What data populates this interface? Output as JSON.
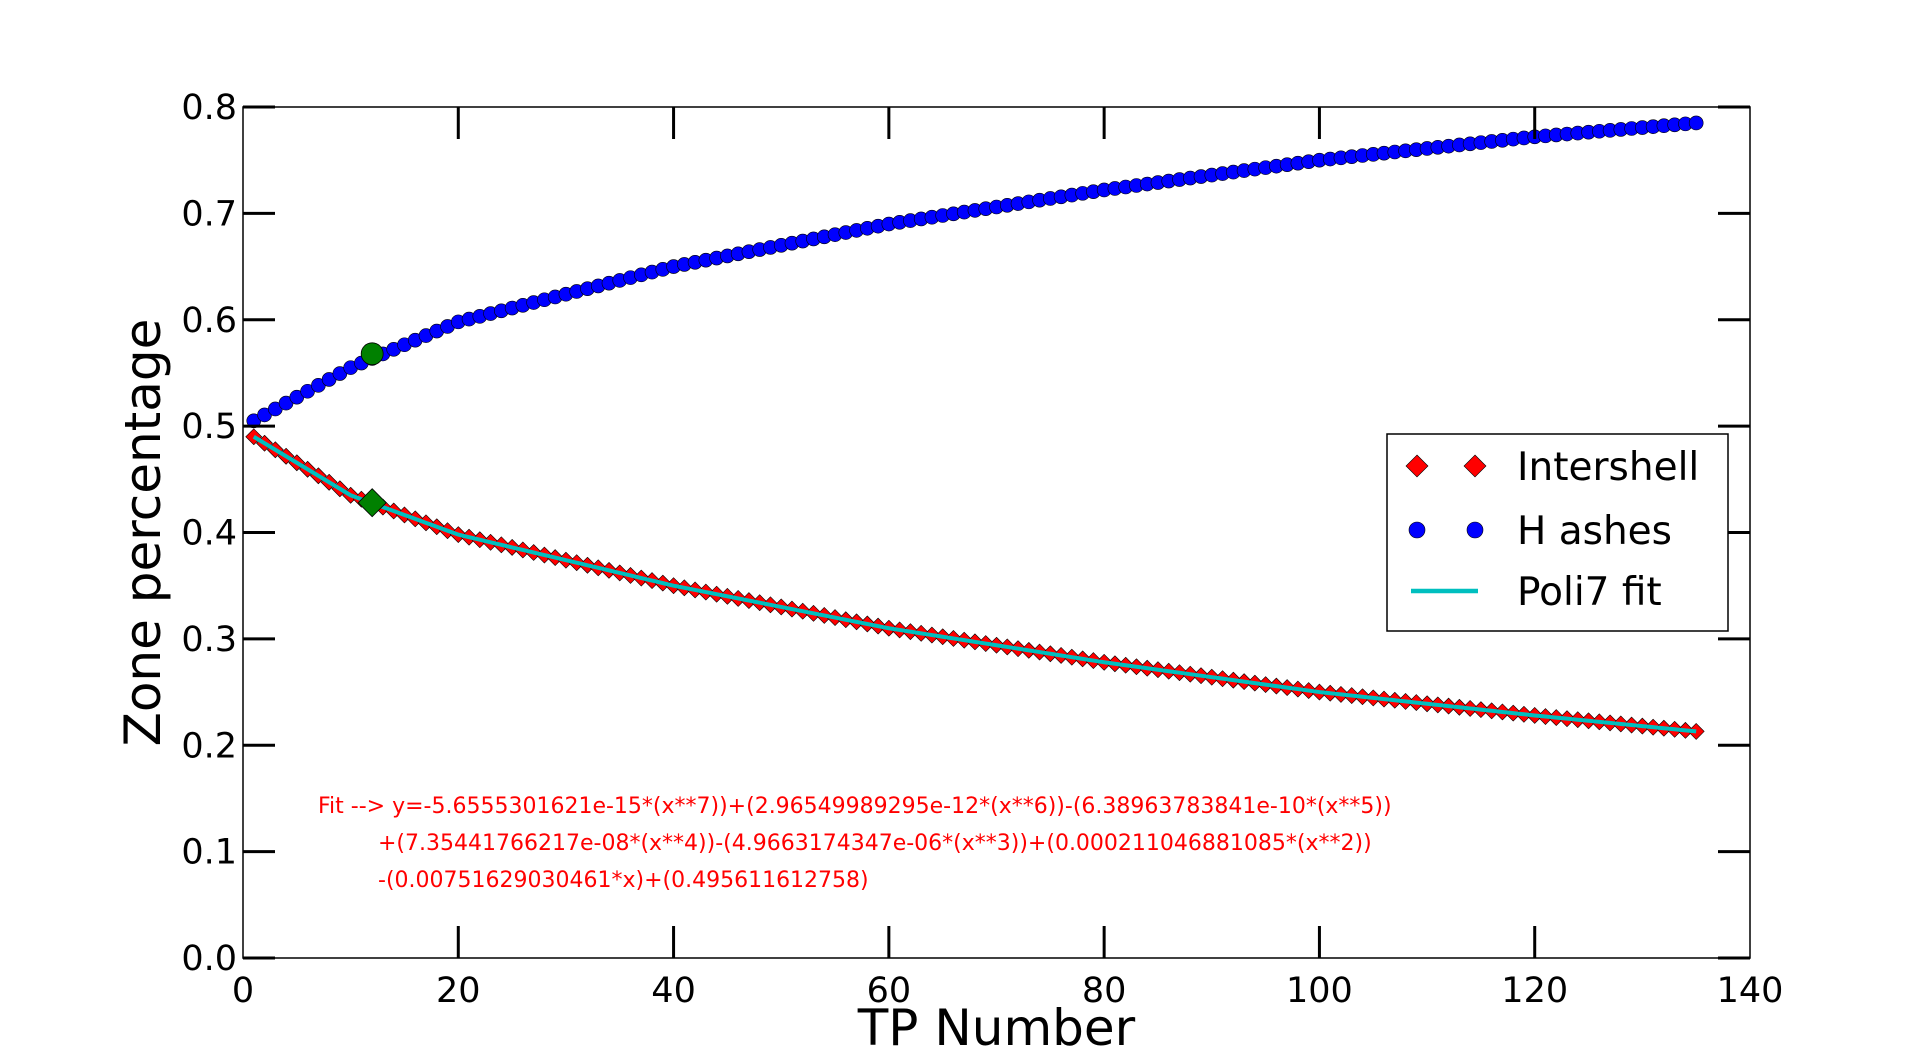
{
  "chart_data": {
    "type": "scatter",
    "title": "",
    "xlabel": "TP Number",
    "ylabel": "Zone percentage",
    "xlim": [
      0,
      140
    ],
    "ylim": [
      0.0,
      0.8
    ],
    "xticks": [
      "0",
      "20",
      "40",
      "60",
      "80",
      "100",
      "120",
      "140"
    ],
    "yticks": [
      "0.0",
      "0.1",
      "0.2",
      "0.3",
      "0.4",
      "0.5",
      "0.6",
      "0.7",
      "0.8"
    ],
    "grid": false,
    "legend_position": "center-right",
    "x_range": [
      1,
      135
    ],
    "series": [
      {
        "name": "Intershell",
        "marker": "diamond",
        "color": "#ff0000",
        "sample_points": [
          {
            "x": 1,
            "y": 0.49
          },
          {
            "x": 10,
            "y": 0.435
          },
          {
            "x": 20,
            "y": 0.398
          },
          {
            "x": 40,
            "y": 0.35
          },
          {
            "x": 60,
            "y": 0.31
          },
          {
            "x": 80,
            "y": 0.278
          },
          {
            "x": 100,
            "y": 0.25
          },
          {
            "x": 120,
            "y": 0.228
          },
          {
            "x": 135,
            "y": 0.213
          }
        ]
      },
      {
        "name": "H ashes",
        "marker": "circle",
        "color": "#0000ff",
        "sample_points": [
          {
            "x": 1,
            "y": 0.505
          },
          {
            "x": 10,
            "y": 0.555
          },
          {
            "x": 20,
            "y": 0.598
          },
          {
            "x": 40,
            "y": 0.65
          },
          {
            "x": 60,
            "y": 0.69
          },
          {
            "x": 80,
            "y": 0.722
          },
          {
            "x": 100,
            "y": 0.75
          },
          {
            "x": 120,
            "y": 0.772
          },
          {
            "x": 135,
            "y": 0.785
          }
        ]
      },
      {
        "name": "Poli7 fit",
        "style": "line",
        "color": "#00bfbf",
        "coefficients": [
          -5.6555301621e-15,
          2.96549989295e-12,
          -6.38963783841e-10,
          7.35441766217e-08,
          -4.9663174347e-06,
          0.000211046881085,
          -0.00751629030461,
          0.495611612758
        ]
      }
    ],
    "highlight_points": [
      {
        "x": 12,
        "y": 0.568,
        "marker": "circle",
        "color": "#008000"
      },
      {
        "x": 12,
        "y": 0.428,
        "marker": "diamond",
        "color": "#008000"
      }
    ],
    "annotation": {
      "color": "#ff0000",
      "lines": [
        "Fit --> y=-5.6555301621e-15*(x**7))+(2.96549989295e-12*(x**6))-(6.38963783841e-10*(x**5))",
        "+(7.35441766217e-08*(x**4))-(4.9663174347e-06*(x**3))+(0.000211046881085*(x**2))",
        "-(0.00751629030461*x)+(0.495611612758)"
      ]
    }
  }
}
